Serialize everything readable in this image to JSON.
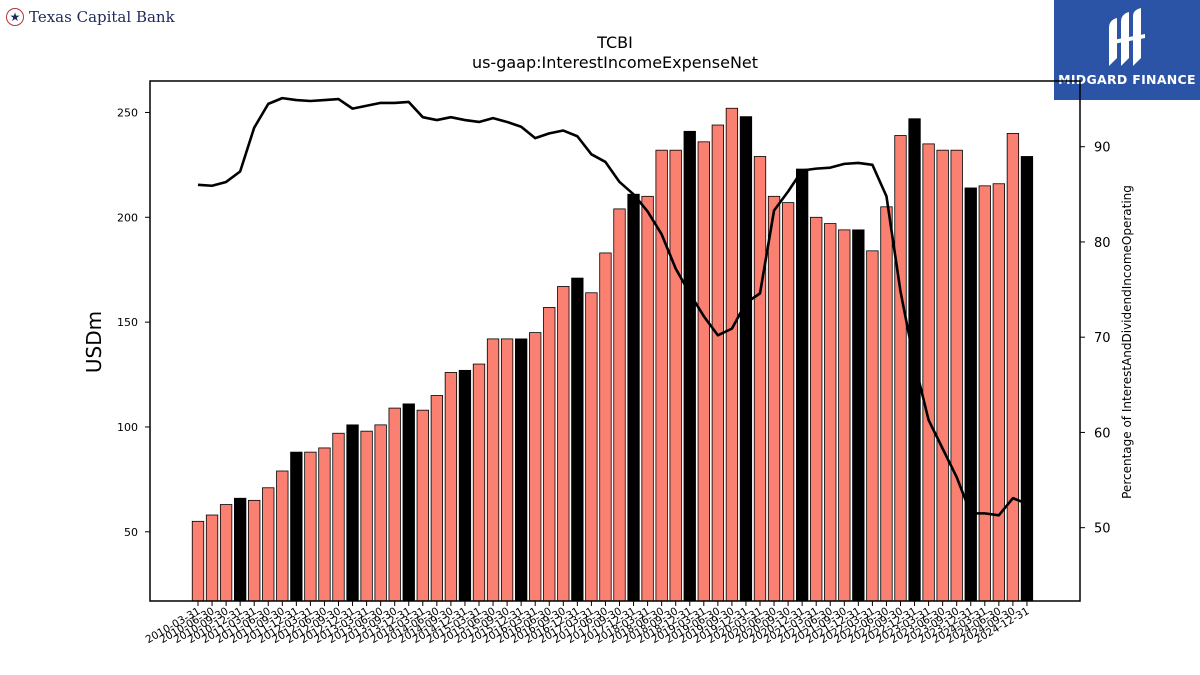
{
  "branding": {
    "left_logo_text": "Texas Capital Bank",
    "right_logo_text": "MIDGARD FINANCE"
  },
  "chart_data": {
    "type": "bar",
    "title": "TCBI",
    "subtitle": "us-gaap:InterestIncomeExpenseNet",
    "ylabel": "USDm",
    "y2label": "Percentage of InterestAndDividendIncomeOperating",
    "ylim": [
      17,
      265
    ],
    "y2lim": [
      42.3,
      96.9
    ],
    "yticks": [
      50,
      100,
      150,
      200,
      250
    ],
    "y2ticks": [
      50,
      60,
      70,
      80,
      90
    ],
    "grid": false,
    "colors": {
      "bar": "#fa8072",
      "bar_q4": "#000000",
      "line": "#000000"
    },
    "categories": [
      "2010-03-31",
      "2010-06-30",
      "2010-09-30",
      "2010-12-31",
      "2011-03-31",
      "2011-06-30",
      "2011-09-30",
      "2011-12-31",
      "2012-03-31",
      "2012-06-30",
      "2012-09-30",
      "2012-12-31",
      "2013-03-31",
      "2013-06-30",
      "2013-09-30",
      "2013-12-31",
      "2014-03-31",
      "2014-06-30",
      "2014-09-30",
      "2014-12-31",
      "2015-03-31",
      "2015-06-30",
      "2015-09-30",
      "2015-12-31",
      "2016-03-31",
      "2016-06-30",
      "2016-09-30",
      "2016-12-31",
      "2017-03-31",
      "2017-06-30",
      "2017-09-30",
      "2017-12-31",
      "2018-03-31",
      "2018-06-30",
      "2018-09-30",
      "2018-12-31",
      "2019-03-31",
      "2019-06-30",
      "2019-09-30",
      "2019-12-31",
      "2020-03-31",
      "2020-06-30",
      "2020-09-30",
      "2020-12-31",
      "2021-03-31",
      "2021-06-30",
      "2021-09-30",
      "2021-12-31",
      "2022-03-31",
      "2022-06-30",
      "2022-09-30",
      "2022-12-31",
      "2023-03-31",
      "2023-06-30",
      "2023-09-30",
      "2023-12-31",
      "2024-03-31",
      "2024-06-30",
      "2024-09-30",
      "2024-12-31"
    ],
    "series": [
      {
        "values": [
          55,
          58,
          63,
          66,
          65,
          71,
          79,
          88,
          88,
          90,
          97,
          101,
          98,
          101,
          109,
          111,
          108,
          115,
          126,
          127,
          130,
          142,
          142,
          142,
          145,
          157,
          167,
          171,
          164,
          183,
          204,
          211,
          210,
          232,
          232,
          241,
          236,
          244,
          252,
          248,
          229,
          210,
          207,
          223,
          200,
          197,
          194,
          194,
          184,
          205,
          239,
          247,
          235,
          232,
          232,
          214,
          215,
          216,
          240,
          229
        ]
      },
      {
        "axis": "right",
        "values": [
          86,
          85.9,
          86.3,
          87.4,
          92,
          94.5,
          95.1,
          94.9,
          94.8,
          94.9,
          95,
          94,
          94.3,
          94.6,
          94.6,
          94.7,
          93.1,
          92.8,
          93.1,
          92.8,
          92.6,
          93,
          92.6,
          92.1,
          90.9,
          91.4,
          91.7,
          91.1,
          89.2,
          88.4,
          86.3,
          85,
          83.2,
          80.8,
          77.2,
          74.6,
          72.2,
          70.2,
          70.9,
          73.6,
          74.6,
          83.3,
          85.3,
          87.5,
          87.7,
          87.8,
          88.2,
          88.3,
          88.1,
          84.8,
          74.8,
          67.3,
          61.3,
          58.3,
          55.3,
          51.5,
          51.5,
          51.3,
          53.1,
          52.5
        ]
      }
    ]
  }
}
